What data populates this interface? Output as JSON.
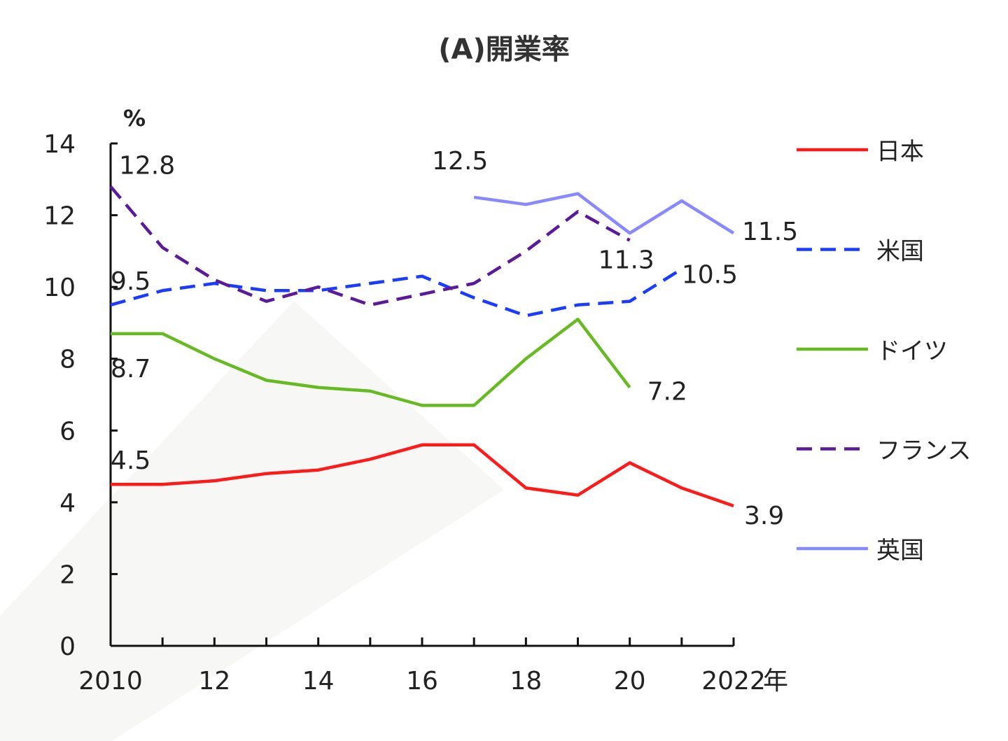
{
  "chart_data": {
    "type": "line",
    "title": "(A)開業率",
    "ylabel": "%",
    "xlabel": "年",
    "ylim": [
      0,
      14
    ],
    "yticks": [
      0,
      2,
      4,
      6,
      8,
      10,
      12,
      14
    ],
    "xlim": [
      2010,
      2022
    ],
    "xtick_labels": [
      {
        "x": 2010,
        "label": "2010"
      },
      {
        "x": 2012,
        "label": "12"
      },
      {
        "x": 2014,
        "label": "14"
      },
      {
        "x": 2016,
        "label": "16"
      },
      {
        "x": 2018,
        "label": "18"
      },
      {
        "x": 2020,
        "label": "20"
      },
      {
        "x": 2022,
        "label": "2022"
      }
    ],
    "x_unit": "年",
    "legend_position": "right",
    "series": [
      {
        "name": "日本",
        "color": "#ff1a1a",
        "dash": false,
        "x": [
          2010,
          2011,
          2012,
          2013,
          2014,
          2015,
          2016,
          2017,
          2018,
          2019,
          2020,
          2021,
          2022
        ],
        "values": [
          4.5,
          4.5,
          4.6,
          4.8,
          4.9,
          5.2,
          5.6,
          5.6,
          4.4,
          4.2,
          5.1,
          4.4,
          3.9
        ]
      },
      {
        "name": "米国",
        "color": "#1a3cff",
        "dash": true,
        "x": [
          2010,
          2011,
          2012,
          2013,
          2014,
          2015,
          2016,
          2017,
          2018,
          2019,
          2020,
          2021
        ],
        "values": [
          9.5,
          9.9,
          10.1,
          9.9,
          9.9,
          10.1,
          10.3,
          9.7,
          9.2,
          9.5,
          9.6,
          10.5
        ]
      },
      {
        "name": "ドイツ",
        "color": "#66bb22",
        "dash": false,
        "x": [
          2010,
          2011,
          2012,
          2013,
          2014,
          2015,
          2016,
          2017,
          2018,
          2019,
          2020
        ],
        "values": [
          8.7,
          8.7,
          8.0,
          7.4,
          7.2,
          7.1,
          6.7,
          6.7,
          8.0,
          9.1,
          7.2
        ]
      },
      {
        "name": "フランス",
        "color": "#5a1a9a",
        "dash": true,
        "x": [
          2010,
          2011,
          2012,
          2013,
          2014,
          2015,
          2016,
          2017,
          2018,
          2019,
          2020
        ],
        "values": [
          12.8,
          11.1,
          10.2,
          9.6,
          10.0,
          9.5,
          9.8,
          10.1,
          11.0,
          12.1,
          11.3
        ]
      },
      {
        "name": "英国",
        "color": "#8888ff",
        "dash": false,
        "x": [
          2017,
          2018,
          2019,
          2020,
          2021,
          2022
        ],
        "values": [
          12.5,
          12.3,
          12.6,
          11.5,
          12.4,
          11.5
        ]
      }
    ],
    "annotations": [
      {
        "text": "12.8",
        "x": 2010,
        "y": 12.8
      },
      {
        "text": "9.5",
        "x": 2010,
        "y": 9.5
      },
      {
        "text": "8.7",
        "x": 2010,
        "y": 8.7
      },
      {
        "text": "4.5",
        "x": 2010,
        "y": 4.5
      },
      {
        "text": "12.5",
        "x": 2017,
        "y": 12.5
      },
      {
        "text": "11.5",
        "x": 2022,
        "y": 11.5
      },
      {
        "text": "11.3",
        "x": 2020,
        "y": 11.3
      },
      {
        "text": "10.5",
        "x": 2021,
        "y": 10.5
      },
      {
        "text": "7.2",
        "x": 2020,
        "y": 7.2
      },
      {
        "text": "3.9",
        "x": 2022,
        "y": 3.9
      }
    ]
  }
}
